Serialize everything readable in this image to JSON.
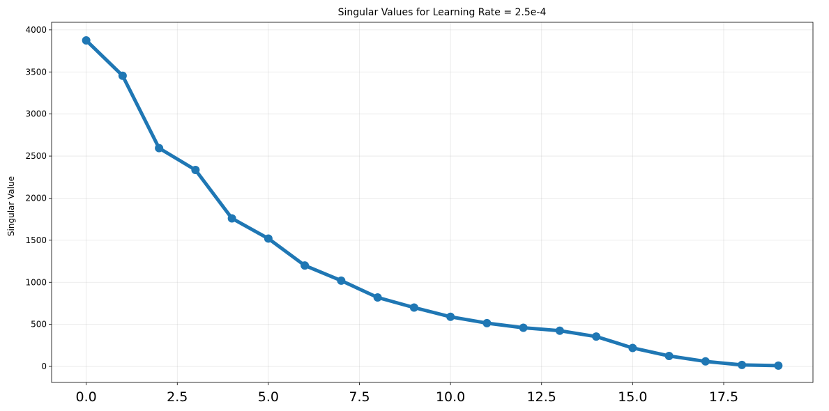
{
  "chart_data": {
    "type": "line",
    "title": "Singular Values for Learning Rate = 2.5e-4",
    "xlabel": "",
    "ylabel": "Singular Value",
    "x": [
      0,
      1,
      2,
      3,
      4,
      5,
      6,
      7,
      8,
      9,
      10,
      11,
      12,
      13,
      14,
      15,
      16,
      17,
      18,
      19
    ],
    "series": [
      {
        "values": [
          3875,
          3455,
          2595,
          2335,
          1760,
          1520,
          1200,
          1020,
          820,
          700,
          590,
          515,
          460,
          425,
          355,
          220,
          125,
          60,
          18,
          10
        ],
        "color": "#1f77b4",
        "marker": "circle"
      }
    ],
    "xlim": [
      -0.95,
      19.95
    ],
    "ylim": [
      -190,
      4090
    ],
    "xticks": [
      0.0,
      2.5,
      5.0,
      7.5,
      10.0,
      12.5,
      15.0,
      17.5
    ],
    "xtick_labels": [
      "0.0",
      "2.5",
      "5.0",
      "7.5",
      "10.0",
      "12.5",
      "15.0",
      "17.5"
    ],
    "yticks": [
      0,
      500,
      1000,
      1500,
      2000,
      2500,
      3000,
      3500,
      4000
    ],
    "ytick_labels": [
      "0",
      "500",
      "1000",
      "1500",
      "2000",
      "2500",
      "3000",
      "3500",
      "4000"
    ],
    "grid": true,
    "legend": false
  }
}
